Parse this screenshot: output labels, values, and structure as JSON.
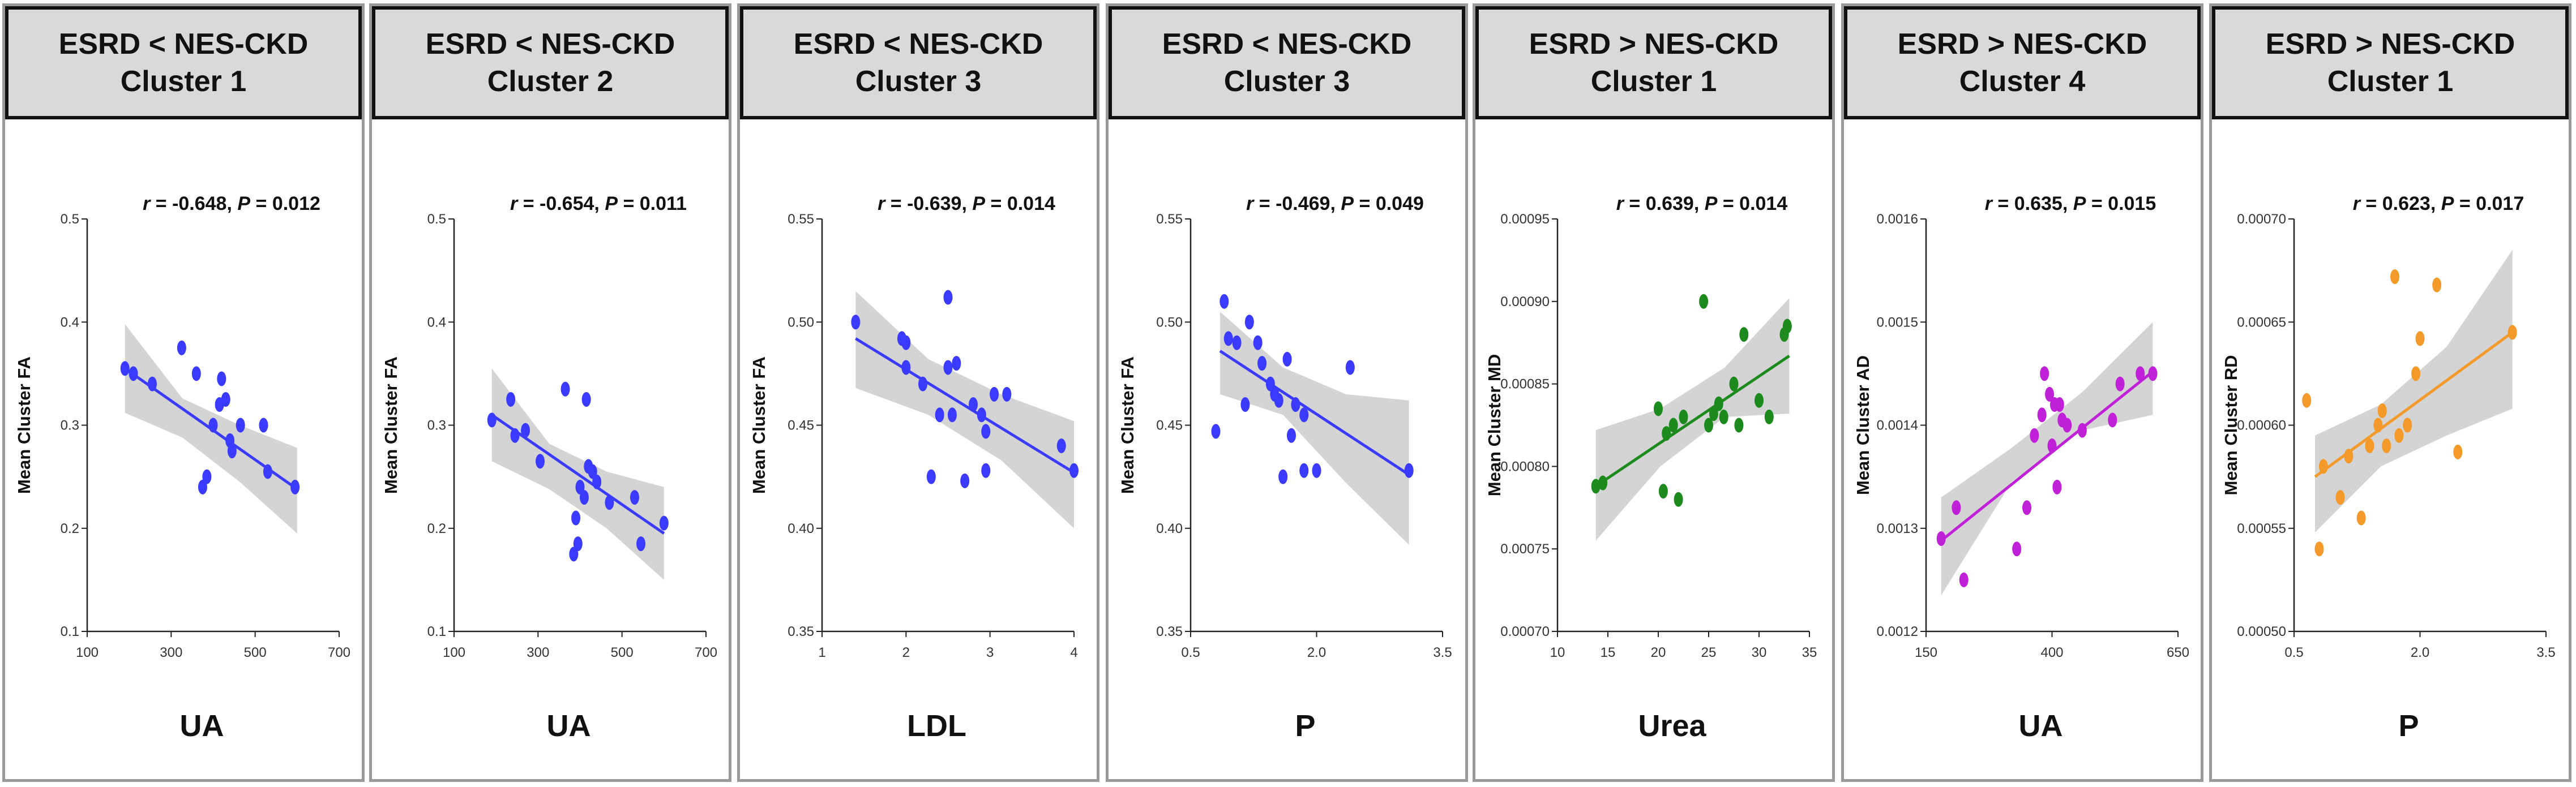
{
  "chart_data": [
    {
      "type": "scatter",
      "title": "ESRD < NES-CKD Cluster 1",
      "title_lines": [
        "ESRD < NES-CKD",
        "Cluster 1"
      ],
      "stats": {
        "r": "-0.648",
        "p": "0.012"
      },
      "xlabel": "UA",
      "ylabel": "Mean Cluster FA",
      "xlim": [
        100,
        700
      ],
      "ylim": [
        0.1,
        0.5
      ],
      "x_ticks": [
        "100",
        "300",
        "500",
        "700"
      ],
      "y_ticks": [
        "0.1",
        "0.2",
        "0.3",
        "0.4",
        "0.5"
      ],
      "color": "#3b3bff",
      "fit": {
        "x": [
          190,
          600
        ],
        "y": [
          0.355,
          0.238
        ]
      },
      "band": {
        "upper": [
          0.398,
          0.326,
          0.3,
          0.278
        ],
        "lower": [
          0.312,
          0.288,
          0.245,
          0.195
        ]
      },
      "points": [
        [
          190,
          0.355
        ],
        [
          210,
          0.35
        ],
        [
          255,
          0.34
        ],
        [
          325,
          0.375
        ],
        [
          360,
          0.35
        ],
        [
          375,
          0.24
        ],
        [
          385,
          0.25
        ],
        [
          400,
          0.3
        ],
        [
          415,
          0.32
        ],
        [
          420,
          0.345
        ],
        [
          430,
          0.325
        ],
        [
          440,
          0.285
        ],
        [
          445,
          0.275
        ],
        [
          465,
          0.3
        ],
        [
          520,
          0.3
        ],
        [
          530,
          0.255
        ],
        [
          595,
          0.24
        ]
      ]
    },
    {
      "type": "scatter",
      "title": "ESRD < NES-CKD Cluster 2",
      "title_lines": [
        "ESRD < NES-CKD",
        "Cluster 2"
      ],
      "stats": {
        "r": "-0.654",
        "p": "0.011"
      },
      "xlabel": "UA",
      "ylabel": "Mean Cluster FA",
      "xlim": [
        100,
        700
      ],
      "ylim": [
        0.1,
        0.5
      ],
      "x_ticks": [
        "100",
        "300",
        "500",
        "700"
      ],
      "y_ticks": [
        "0.1",
        "0.2",
        "0.3",
        "0.4",
        "0.5"
      ],
      "color": "#3b3bff",
      "fit": {
        "x": [
          190,
          600
        ],
        "y": [
          0.31,
          0.195
        ]
      },
      "band": {
        "upper": [
          0.355,
          0.282,
          0.255,
          0.24
        ],
        "lower": [
          0.265,
          0.238,
          0.2,
          0.15
        ]
      },
      "points": [
        [
          190,
          0.305
        ],
        [
          235,
          0.325
        ],
        [
          245,
          0.29
        ],
        [
          270,
          0.295
        ],
        [
          305,
          0.265
        ],
        [
          365,
          0.335
        ],
        [
          385,
          0.175
        ],
        [
          390,
          0.21
        ],
        [
          395,
          0.185
        ],
        [
          400,
          0.24
        ],
        [
          410,
          0.23
        ],
        [
          415,
          0.325
        ],
        [
          420,
          0.26
        ],
        [
          430,
          0.255
        ],
        [
          440,
          0.245
        ],
        [
          470,
          0.225
        ],
        [
          530,
          0.23
        ],
        [
          545,
          0.185
        ],
        [
          600,
          0.205
        ]
      ]
    },
    {
      "type": "scatter",
      "title": "ESRD < NES-CKD Cluster 3",
      "title_lines": [
        "ESRD < NES-CKD",
        "Cluster 3"
      ],
      "stats": {
        "r": "-0.639",
        "p": "0.014"
      },
      "xlabel": "LDL",
      "ylabel": "Mean Cluster FA",
      "xlim": [
        1,
        4
      ],
      "ylim": [
        0.35,
        0.55
      ],
      "x_ticks": [
        "1",
        "2",
        "3",
        "4"
      ],
      "y_ticks": [
        "0.35",
        "0.40",
        "0.45",
        "0.50",
        "0.55"
      ],
      "color": "#3b3bff",
      "fit": {
        "x": [
          1.4,
          4.0
        ],
        "y": [
          0.492,
          0.427
        ]
      },
      "band": {
        "upper": [
          0.515,
          0.482,
          0.465,
          0.452
        ],
        "lower": [
          0.468,
          0.455,
          0.433,
          0.4
        ]
      },
      "points": [
        [
          1.4,
          0.5
        ],
        [
          1.95,
          0.492
        ],
        [
          2.0,
          0.49
        ],
        [
          2.0,
          0.478
        ],
        [
          2.2,
          0.47
        ],
        [
          2.3,
          0.425
        ],
        [
          2.4,
          0.455
        ],
        [
          2.5,
          0.478
        ],
        [
          2.5,
          0.512
        ],
        [
          2.55,
          0.455
        ],
        [
          2.6,
          0.48
        ],
        [
          2.7,
          0.423
        ],
        [
          2.8,
          0.46
        ],
        [
          2.9,
          0.455
        ],
        [
          2.95,
          0.428
        ],
        [
          2.95,
          0.447
        ],
        [
          3.05,
          0.465
        ],
        [
          3.2,
          0.465
        ],
        [
          3.85,
          0.44
        ],
        [
          4.0,
          0.428
        ]
      ]
    },
    {
      "type": "scatter",
      "title": "ESRD < NES-CKD Cluster 3",
      "title_lines": [
        "ESRD < NES-CKD",
        "Cluster 3"
      ],
      "stats": {
        "r": "-0.469",
        "p": "0.049"
      },
      "xlabel": "P",
      "ylabel": "Mean Cluster FA",
      "xlim": [
        0.5,
        3.5
      ],
      "ylim": [
        0.35,
        0.55
      ],
      "x_ticks": [
        "0.5",
        "2.0",
        "3.5"
      ],
      "y_ticks": [
        "0.35",
        "0.40",
        "0.45",
        "0.50",
        "0.55"
      ],
      "color": "#3b3bff",
      "fit": {
        "x": [
          0.85,
          3.1
        ],
        "y": [
          0.486,
          0.426
        ]
      },
      "band": {
        "upper": [
          0.505,
          0.478,
          0.465,
          0.462
        ],
        "lower": [
          0.465,
          0.455,
          0.422,
          0.392
        ]
      },
      "points": [
        [
          0.8,
          0.447
        ],
        [
          0.9,
          0.51
        ],
        [
          0.95,
          0.492
        ],
        [
          1.05,
          0.49
        ],
        [
          1.15,
          0.46
        ],
        [
          1.2,
          0.5
        ],
        [
          1.3,
          0.49
        ],
        [
          1.35,
          0.48
        ],
        [
          1.45,
          0.47
        ],
        [
          1.5,
          0.465
        ],
        [
          1.55,
          0.462
        ],
        [
          1.6,
          0.425
        ],
        [
          1.65,
          0.482
        ],
        [
          1.7,
          0.445
        ],
        [
          1.75,
          0.46
        ],
        [
          1.85,
          0.455
        ],
        [
          1.85,
          0.428
        ],
        [
          2.0,
          0.428
        ],
        [
          2.4,
          0.478
        ],
        [
          3.1,
          0.428
        ]
      ]
    },
    {
      "type": "scatter",
      "title": "ESRD > NES-CKD Cluster 1",
      "title_lines": [
        "ESRD > NES-CKD",
        "Cluster 1"
      ],
      "stats": {
        "r": "0.639",
        "p": "0.014"
      },
      "xlabel": "Urea",
      "ylabel": "Mean Cluster MD",
      "xlim": [
        10,
        35
      ],
      "ylim": [
        0.0007,
        0.00095
      ],
      "x_ticks": [
        "10",
        "15",
        "20",
        "25",
        "30",
        "35"
      ],
      "y_ticks": [
        "0.00070",
        "0.00075",
        "0.00080",
        "0.00085",
        "0.00090",
        "0.00095"
      ],
      "color": "#1d8a1d",
      "fit": {
        "x": [
          13.8,
          33.0
        ],
        "y": [
          0.000788,
          0.000867
        ]
      },
      "band": {
        "upper": [
          0.000822,
          0.000835,
          0.00086,
          0.000902
        ],
        "lower": [
          0.000755,
          0.0008,
          0.00083,
          0.000832
        ]
      },
      "points": [
        [
          13.8,
          0.000788
        ],
        [
          14.5,
          0.00079
        ],
        [
          20,
          0.000835
        ],
        [
          20.5,
          0.000785
        ],
        [
          20.8,
          0.00082
        ],
        [
          21.5,
          0.000825
        ],
        [
          22,
          0.00078
        ],
        [
          22.5,
          0.00083
        ],
        [
          24.5,
          0.0009
        ],
        [
          25,
          0.000825
        ],
        [
          25.5,
          0.000832
        ],
        [
          26,
          0.000838
        ],
        [
          26.5,
          0.00083
        ],
        [
          27.5,
          0.00085
        ],
        [
          28,
          0.000825
        ],
        [
          28.5,
          0.00088
        ],
        [
          30,
          0.00084
        ],
        [
          31,
          0.00083
        ],
        [
          32.5,
          0.00088
        ],
        [
          32.8,
          0.000885
        ]
      ]
    },
    {
      "type": "scatter",
      "title": "ESRD > NES-CKD Cluster 4",
      "title_lines": [
        "ESRD > NES-CKD",
        "Cluster 4"
      ],
      "stats": {
        "r": "0.635",
        "p": "0.015"
      },
      "xlabel": "UA",
      "ylabel": "Mean Cluster AD",
      "xlim": [
        150,
        650
      ],
      "ylim": [
        0.0012,
        0.0016
      ],
      "x_ticks": [
        "150",
        "400",
        "650"
      ],
      "y_ticks": [
        "0.0012",
        "0.0013",
        "0.0014",
        "0.0015",
        "0.0016"
      ],
      "color": "#c020d8",
      "fit": {
        "x": [
          180,
          600
        ],
        "y": [
          0.001288,
          0.001452
        ]
      },
      "band": {
        "upper": [
          0.00133,
          0.001378,
          0.001432,
          0.0015
        ],
        "lower": [
          0.001235,
          0.001345,
          0.001395,
          0.00141
        ]
      },
      "points": [
        [
          180,
          0.00129
        ],
        [
          210,
          0.00132
        ],
        [
          225,
          0.00125
        ],
        [
          330,
          0.00128
        ],
        [
          350,
          0.00132
        ],
        [
          365,
          0.00139
        ],
        [
          380,
          0.00141
        ],
        [
          385,
          0.00145
        ],
        [
          395,
          0.00143
        ],
        [
          400,
          0.00138
        ],
        [
          405,
          0.00142
        ],
        [
          410,
          0.00134
        ],
        [
          415,
          0.00142
        ],
        [
          420,
          0.001405
        ],
        [
          430,
          0.0014
        ],
        [
          460,
          0.001395
        ],
        [
          520,
          0.001405
        ],
        [
          535,
          0.00144
        ],
        [
          575,
          0.00145
        ],
        [
          600,
          0.00145
        ]
      ]
    },
    {
      "type": "scatter",
      "title": "ESRD > NES-CKD Cluster 1",
      "title_lines": [
        "ESRD > NES-CKD",
        "Cluster 1"
      ],
      "stats": {
        "r": "0.623",
        "p": "0.017"
      },
      "xlabel": "P",
      "ylabel": "Mean Cluster RD",
      "xlim": [
        0.5,
        3.5
      ],
      "ylim": [
        0.0005,
        0.0007
      ],
      "x_ticks": [
        "0.5",
        "2.0",
        "3.5"
      ],
      "y_ticks": [
        "0.00050",
        "0.00055",
        "0.00060",
        "0.00065",
        "0.00070"
      ],
      "color": "#f39a2a",
      "fit": {
        "x": [
          0.75,
          3.1
        ],
        "y": [
          0.000575,
          0.000645
        ]
      },
      "band": {
        "upper": [
          0.000595,
          0.00061,
          0.000638,
          0.000685
        ],
        "lower": [
          0.000548,
          0.00058,
          0.000595,
          0.000608
        ]
      },
      "points": [
        [
          0.65,
          0.000612
        ],
        [
          0.8,
          0.00054
        ],
        [
          0.85,
          0.00058
        ],
        [
          1.05,
          0.000565
        ],
        [
          1.15,
          0.000585
        ],
        [
          1.3,
          0.000555
        ],
        [
          1.4,
          0.00059
        ],
        [
          1.5,
          0.0006
        ],
        [
          1.55,
          0.000607
        ],
        [
          1.6,
          0.00059
        ],
        [
          1.7,
          0.000672
        ],
        [
          1.75,
          0.000595
        ],
        [
          1.85,
          0.0006
        ],
        [
          1.95,
          0.000625
        ],
        [
          2.0,
          0.000642
        ],
        [
          2.2,
          0.000668
        ],
        [
          2.45,
          0.000587
        ],
        [
          3.1,
          0.000645
        ]
      ]
    }
  ]
}
